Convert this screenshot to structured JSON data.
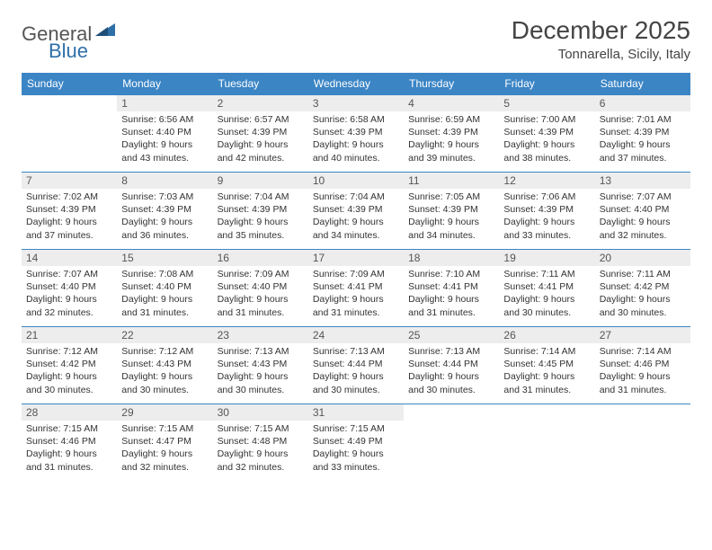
{
  "brand": {
    "general": "General",
    "blue": "Blue"
  },
  "title": "December 2025",
  "location": "Tonnarella, Sicily, Italy",
  "colors": {
    "header_bg": "#3b85c5",
    "header_text": "#ffffff",
    "daynum_bg": "#ededed",
    "rule": "#3b85c5",
    "logo_blue": "#2f6fa8"
  },
  "weekdays": [
    "Sunday",
    "Monday",
    "Tuesday",
    "Wednesday",
    "Thursday",
    "Friday",
    "Saturday"
  ],
  "first_weekday_index": 1,
  "days": [
    {
      "n": 1,
      "sunrise": "6:56 AM",
      "sunset": "4:40 PM",
      "daylight": "9 hours and 43 minutes."
    },
    {
      "n": 2,
      "sunrise": "6:57 AM",
      "sunset": "4:39 PM",
      "daylight": "9 hours and 42 minutes."
    },
    {
      "n": 3,
      "sunrise": "6:58 AM",
      "sunset": "4:39 PM",
      "daylight": "9 hours and 40 minutes."
    },
    {
      "n": 4,
      "sunrise": "6:59 AM",
      "sunset": "4:39 PM",
      "daylight": "9 hours and 39 minutes."
    },
    {
      "n": 5,
      "sunrise": "7:00 AM",
      "sunset": "4:39 PM",
      "daylight": "9 hours and 38 minutes."
    },
    {
      "n": 6,
      "sunrise": "7:01 AM",
      "sunset": "4:39 PM",
      "daylight": "9 hours and 37 minutes."
    },
    {
      "n": 7,
      "sunrise": "7:02 AM",
      "sunset": "4:39 PM",
      "daylight": "9 hours and 37 minutes."
    },
    {
      "n": 8,
      "sunrise": "7:03 AM",
      "sunset": "4:39 PM",
      "daylight": "9 hours and 36 minutes."
    },
    {
      "n": 9,
      "sunrise": "7:04 AM",
      "sunset": "4:39 PM",
      "daylight": "9 hours and 35 minutes."
    },
    {
      "n": 10,
      "sunrise": "7:04 AM",
      "sunset": "4:39 PM",
      "daylight": "9 hours and 34 minutes."
    },
    {
      "n": 11,
      "sunrise": "7:05 AM",
      "sunset": "4:39 PM",
      "daylight": "9 hours and 34 minutes."
    },
    {
      "n": 12,
      "sunrise": "7:06 AM",
      "sunset": "4:39 PM",
      "daylight": "9 hours and 33 minutes."
    },
    {
      "n": 13,
      "sunrise": "7:07 AM",
      "sunset": "4:40 PM",
      "daylight": "9 hours and 32 minutes."
    },
    {
      "n": 14,
      "sunrise": "7:07 AM",
      "sunset": "4:40 PM",
      "daylight": "9 hours and 32 minutes."
    },
    {
      "n": 15,
      "sunrise": "7:08 AM",
      "sunset": "4:40 PM",
      "daylight": "9 hours and 31 minutes."
    },
    {
      "n": 16,
      "sunrise": "7:09 AM",
      "sunset": "4:40 PM",
      "daylight": "9 hours and 31 minutes."
    },
    {
      "n": 17,
      "sunrise": "7:09 AM",
      "sunset": "4:41 PM",
      "daylight": "9 hours and 31 minutes."
    },
    {
      "n": 18,
      "sunrise": "7:10 AM",
      "sunset": "4:41 PM",
      "daylight": "9 hours and 31 minutes."
    },
    {
      "n": 19,
      "sunrise": "7:11 AM",
      "sunset": "4:41 PM",
      "daylight": "9 hours and 30 minutes."
    },
    {
      "n": 20,
      "sunrise": "7:11 AM",
      "sunset": "4:42 PM",
      "daylight": "9 hours and 30 minutes."
    },
    {
      "n": 21,
      "sunrise": "7:12 AM",
      "sunset": "4:42 PM",
      "daylight": "9 hours and 30 minutes."
    },
    {
      "n": 22,
      "sunrise": "7:12 AM",
      "sunset": "4:43 PM",
      "daylight": "9 hours and 30 minutes."
    },
    {
      "n": 23,
      "sunrise": "7:13 AM",
      "sunset": "4:43 PM",
      "daylight": "9 hours and 30 minutes."
    },
    {
      "n": 24,
      "sunrise": "7:13 AM",
      "sunset": "4:44 PM",
      "daylight": "9 hours and 30 minutes."
    },
    {
      "n": 25,
      "sunrise": "7:13 AM",
      "sunset": "4:44 PM",
      "daylight": "9 hours and 30 minutes."
    },
    {
      "n": 26,
      "sunrise": "7:14 AM",
      "sunset": "4:45 PM",
      "daylight": "9 hours and 31 minutes."
    },
    {
      "n": 27,
      "sunrise": "7:14 AM",
      "sunset": "4:46 PM",
      "daylight": "9 hours and 31 minutes."
    },
    {
      "n": 28,
      "sunrise": "7:15 AM",
      "sunset": "4:46 PM",
      "daylight": "9 hours and 31 minutes."
    },
    {
      "n": 29,
      "sunrise": "7:15 AM",
      "sunset": "4:47 PM",
      "daylight": "9 hours and 32 minutes."
    },
    {
      "n": 30,
      "sunrise": "7:15 AM",
      "sunset": "4:48 PM",
      "daylight": "9 hours and 32 minutes."
    },
    {
      "n": 31,
      "sunrise": "7:15 AM",
      "sunset": "4:49 PM",
      "daylight": "9 hours and 33 minutes."
    }
  ],
  "labels": {
    "sunrise": "Sunrise:",
    "sunset": "Sunset:",
    "daylight": "Daylight:"
  }
}
